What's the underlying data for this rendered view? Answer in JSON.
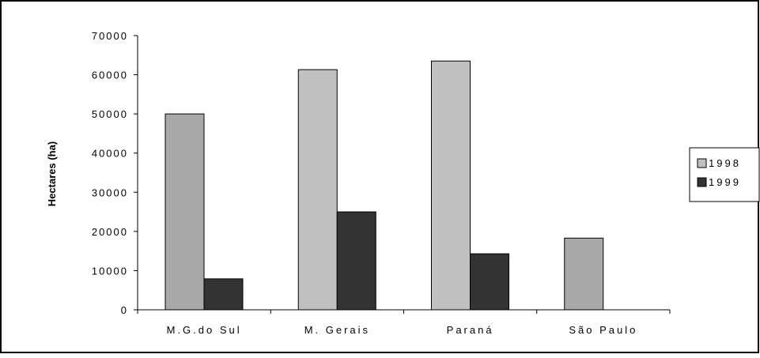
{
  "chart_data": {
    "type": "bar",
    "title": "",
    "xlabel": "",
    "ylabel": "Hectares (ha)",
    "categories": [
      "M.G.do Sul",
      "M. Gerais",
      "Paraná",
      "São Paulo"
    ],
    "category_labels": [
      "M.G.do Sul",
      "M. Gerais",
      "Paraná",
      "São Paulo"
    ],
    "series": [
      {
        "name": "1998",
        "values": [
          50000,
          61300,
          63500,
          18300
        ],
        "color": "#c0c0c0",
        "alt_color": "#a8a8a8"
      },
      {
        "name": "1999",
        "values": [
          7900,
          25000,
          14300,
          0
        ],
        "color": "#333333"
      }
    ],
    "ylim": [
      0,
      70000
    ],
    "yticks": [
      0,
      10000,
      20000,
      30000,
      40000,
      50000,
      60000,
      70000
    ],
    "ytick_labels": [
      "0",
      "10000",
      "20000",
      "30000",
      "40000",
      "50000",
      "60000",
      "70000"
    ],
    "grid": false,
    "legend_position": "right"
  }
}
